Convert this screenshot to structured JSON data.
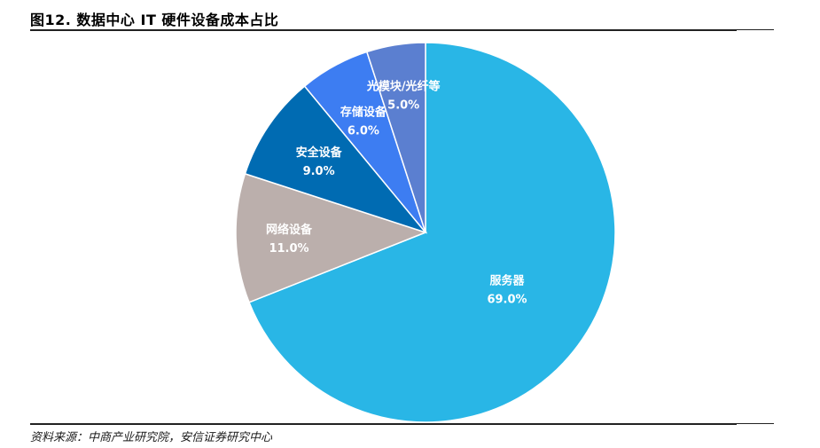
{
  "header": {
    "title": "图12. 数据中心 IT 硬件设备成本占比"
  },
  "footer": {
    "source": "资料来源：中商产业研究院，安信证券研究中心"
  },
  "chart_data": {
    "type": "pie",
    "title": "图12. 数据中心 IT 硬件设备成本占比",
    "labels": [
      "服务器",
      "网络设备",
      "安全设备",
      "存储设备",
      "光模块/光纤等"
    ],
    "values": [
      69.0,
      11.0,
      9.0,
      6.0,
      5.0
    ],
    "value_labels": [
      "69.0%",
      "11.0%",
      "9.0%",
      "6.0%",
      "5.0%"
    ],
    "colors": [
      "#29B6E6",
      "#BBAFAC",
      "#006BB2",
      "#3D7DF2",
      "#5B7FD0"
    ],
    "start_angle": "12 o'clock",
    "direction": "clockwise",
    "legend": "none"
  }
}
